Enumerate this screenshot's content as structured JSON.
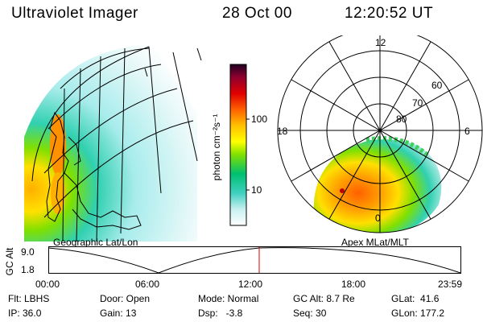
{
  "header": {
    "instrument": "Ultraviolet Imager",
    "date": "28 Oct 00",
    "time": "12:20:52 UT"
  },
  "left_panel": {
    "caption": "Geographic Lat/Lon"
  },
  "right_panel": {
    "caption": "Apex MLat/MLT",
    "mlt_labels": {
      "top": "12",
      "left": "18",
      "right": "6",
      "bottom": "0"
    },
    "lat_labels": [
      "60",
      "70",
      "80"
    ]
  },
  "colorbar": {
    "unit_label": "photon cm⁻²s⁻¹",
    "ticks": [
      "100",
      "10"
    ],
    "colors": [
      "#ffffff",
      "#c8f0f0",
      "#40d0c0",
      "#00c070",
      "#80e000",
      "#ffff00",
      "#ffc000",
      "#ff6000",
      "#e00000",
      "#900030",
      "#200020"
    ]
  },
  "altitude_plot": {
    "axis_title": "GC Alt",
    "y_ticks": [
      "9.0",
      "1.8"
    ],
    "x_ticks": [
      "00:00",
      "06:00",
      "12:00",
      "18:00",
      "23:59"
    ],
    "cursor_color": "#e00000"
  },
  "status": {
    "flt": "Flt: LBHS",
    "ip": "IP: 36.0",
    "door": "Door: Open",
    "gain": "Gain: 13",
    "mode": "Mode: Normal",
    "dsp": "Dsp:   -3.8",
    "gcalt": "GC Alt: 8.7 Re",
    "seq": "Seq: 30",
    "glat": "GLat:  41.6",
    "glon": "GLon: 177.2"
  }
}
